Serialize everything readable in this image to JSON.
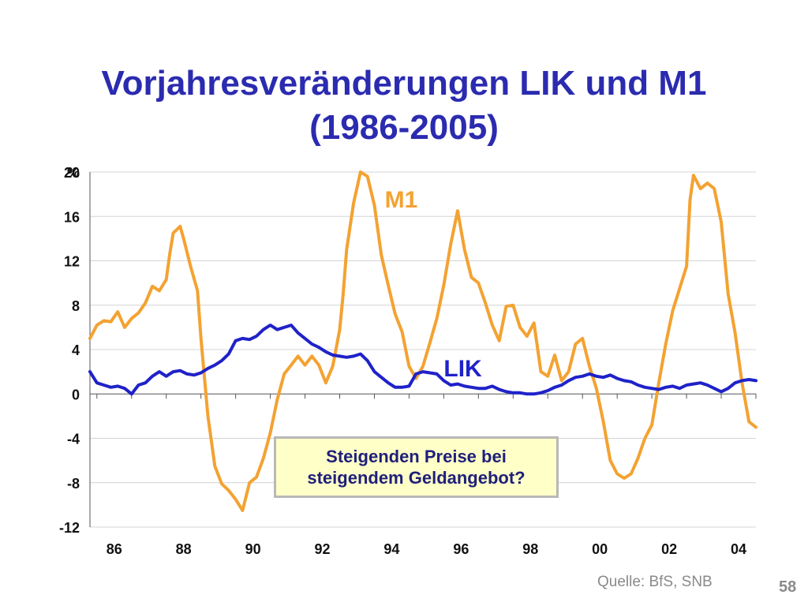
{
  "slide": {
    "title_line1": "Vorjahresveränderungen LIK und M1",
    "title_line2": "(1986-2005)",
    "callout_line1": "Steigenden Preise bei",
    "callout_line2": "steigendem Geldangebot?",
    "source": "Quelle: BfS, SNB",
    "page_number": "58"
  },
  "chart_data": {
    "type": "line",
    "title": "Vorjahresveränderungen LIK und M1 (1986-2005)",
    "ylabel": "%",
    "xlabel": "",
    "ylim": [
      -12,
      20
    ],
    "xlim": [
      1985.8,
      2005.0
    ],
    "yticks": [
      20,
      16,
      12,
      8,
      4,
      0,
      -4,
      -8,
      -12
    ],
    "xtick_values": [
      1986,
      1988,
      1990,
      1992,
      1994,
      1996,
      1998,
      2000,
      2002,
      2004
    ],
    "xtick_labels": [
      "86",
      "88",
      "90",
      "92",
      "94",
      "96",
      "98",
      "00",
      "02",
      "04"
    ],
    "grid": "horizontal",
    "legend": "inline labels",
    "series": [
      {
        "name": "M1",
        "color": "#f3a232",
        "x": [
          1985.8,
          1986.0,
          1986.2,
          1986.4,
          1986.6,
          1986.8,
          1987.0,
          1987.2,
          1987.4,
          1987.6,
          1987.8,
          1988.0,
          1988.1,
          1988.2,
          1988.4,
          1988.5,
          1988.7,
          1988.9,
          1989.0,
          1989.2,
          1989.4,
          1989.6,
          1989.8,
          1990.0,
          1990.2,
          1990.4,
          1990.6,
          1990.8,
          1991.0,
          1991.2,
          1991.4,
          1991.6,
          1991.8,
          1992.0,
          1992.2,
          1992.4,
          1992.6,
          1992.8,
          1993.0,
          1993.1,
          1993.2,
          1993.4,
          1993.6,
          1993.8,
          1994.0,
          1994.2,
          1994.4,
          1994.6,
          1994.8,
          1995.0,
          1995.2,
          1995.4,
          1995.6,
          1995.8,
          1996.0,
          1996.2,
          1996.4,
          1996.6,
          1996.8,
          1997.0,
          1997.2,
          1997.4,
          1997.6,
          1997.8,
          1998.0,
          1998.2,
          1998.4,
          1998.6,
          1998.8,
          1999.0,
          1999.2,
          1999.4,
          1999.6,
          1999.8,
          2000.0,
          2000.2,
          2000.4,
          2000.6,
          2000.8,
          2001.0,
          2001.2,
          2001.4,
          2001.6,
          2001.8,
          2002.0,
          2002.2,
          2002.4,
          2002.6,
          2002.8,
          2003.0,
          2003.1,
          2003.2,
          2003.4,
          2003.6,
          2003.8,
          2004.0,
          2004.2,
          2004.4,
          2004.6,
          2004.8,
          2005.0
        ],
        "values": [
          5.0,
          6.2,
          6.6,
          6.5,
          7.4,
          6.0,
          6.8,
          7.3,
          8.2,
          9.7,
          9.3,
          10.3,
          12.6,
          14.5,
          15.1,
          14.0,
          11.5,
          9.3,
          5.0,
          -2.0,
          -6.5,
          -8.1,
          -8.7,
          -9.5,
          -10.5,
          -8.0,
          -7.5,
          -5.8,
          -3.5,
          -0.5,
          1.8,
          2.6,
          3.4,
          2.6,
          3.4,
          2.6,
          1.0,
          2.5,
          5.8,
          9.0,
          13.0,
          17.2,
          20.0,
          19.6,
          17.0,
          12.5,
          9.8,
          7.2,
          5.6,
          2.5,
          1.4,
          2.5,
          4.6,
          6.8,
          9.8,
          13.5,
          16.5,
          13.0,
          10.5,
          10.0,
          8.2,
          6.2,
          4.8,
          7.9,
          8.0,
          6.0,
          5.2,
          6.4,
          2.0,
          1.6,
          3.5,
          1.2,
          2.0,
          4.5,
          5.0,
          2.5,
          0.5,
          -2.5,
          -6.0,
          -7.2,
          -7.6,
          -7.2,
          -5.8,
          -4.0,
          -2.8,
          1.0,
          4.5,
          7.5,
          9.5,
          11.5,
          17.5,
          19.7,
          18.5,
          19.0,
          18.5,
          15.5,
          9.0,
          5.5,
          1.0,
          -2.5,
          -3.0
        ]
      },
      {
        "name": "LIK",
        "color": "#1f22c8",
        "x": [
          1985.8,
          1986.0,
          1986.2,
          1986.4,
          1986.6,
          1986.8,
          1987.0,
          1987.2,
          1987.4,
          1987.6,
          1987.8,
          1988.0,
          1988.2,
          1988.4,
          1988.6,
          1988.8,
          1989.0,
          1989.2,
          1989.4,
          1989.6,
          1989.8,
          1990.0,
          1990.2,
          1990.4,
          1990.6,
          1990.8,
          1991.0,
          1991.2,
          1991.4,
          1991.6,
          1991.8,
          1992.0,
          1992.2,
          1992.4,
          1992.6,
          1992.8,
          1993.0,
          1993.2,
          1993.4,
          1993.6,
          1993.8,
          1994.0,
          1994.2,
          1994.4,
          1994.6,
          1994.8,
          1995.0,
          1995.2,
          1995.4,
          1995.6,
          1995.8,
          1996.0,
          1996.2,
          1996.4,
          1996.6,
          1996.8,
          1997.0,
          1997.2,
          1997.4,
          1997.6,
          1997.8,
          1998.0,
          1998.2,
          1998.4,
          1998.6,
          1998.8,
          1999.0,
          1999.2,
          1999.4,
          1999.6,
          1999.8,
          2000.0,
          2000.2,
          2000.4,
          2000.6,
          2000.8,
          2001.0,
          2001.2,
          2001.4,
          2001.6,
          2001.8,
          2002.0,
          2002.2,
          2002.4,
          2002.6,
          2002.8,
          2003.0,
          2003.2,
          2003.4,
          2003.6,
          2003.8,
          2004.0,
          2004.2,
          2004.4,
          2004.6,
          2004.8,
          2005.0
        ],
        "values": [
          2.0,
          1.0,
          0.8,
          0.6,
          0.7,
          0.5,
          0.0,
          0.8,
          1.0,
          1.6,
          2.0,
          1.6,
          2.0,
          2.1,
          1.8,
          1.7,
          1.9,
          2.3,
          2.6,
          3.0,
          3.6,
          4.8,
          5.0,
          4.9,
          5.2,
          5.8,
          6.2,
          5.8,
          6.0,
          6.2,
          5.5,
          5.0,
          4.5,
          4.2,
          3.8,
          3.5,
          3.4,
          3.3,
          3.4,
          3.6,
          3.0,
          2.0,
          1.5,
          1.0,
          0.6,
          0.6,
          0.7,
          1.8,
          2.0,
          1.9,
          1.8,
          1.2,
          0.8,
          0.9,
          0.7,
          0.6,
          0.5,
          0.5,
          0.7,
          0.4,
          0.2,
          0.1,
          0.1,
          0.0,
          0.0,
          0.1,
          0.3,
          0.6,
          0.8,
          1.2,
          1.5,
          1.6,
          1.8,
          1.6,
          1.5,
          1.7,
          1.4,
          1.2,
          1.1,
          0.8,
          0.6,
          0.5,
          0.4,
          0.6,
          0.7,
          0.5,
          0.8,
          0.9,
          1.0,
          0.8,
          0.5,
          0.2,
          0.5,
          1.0,
          1.2,
          1.3,
          1.2
        ]
      }
    ],
    "series_labels": [
      {
        "series": "M1",
        "text": "M1",
        "x": 1994.3,
        "y": 17.5
      },
      {
        "series": "LIK",
        "text": "LIK",
        "x": 1996.0,
        "y": 2.3
      }
    ]
  }
}
